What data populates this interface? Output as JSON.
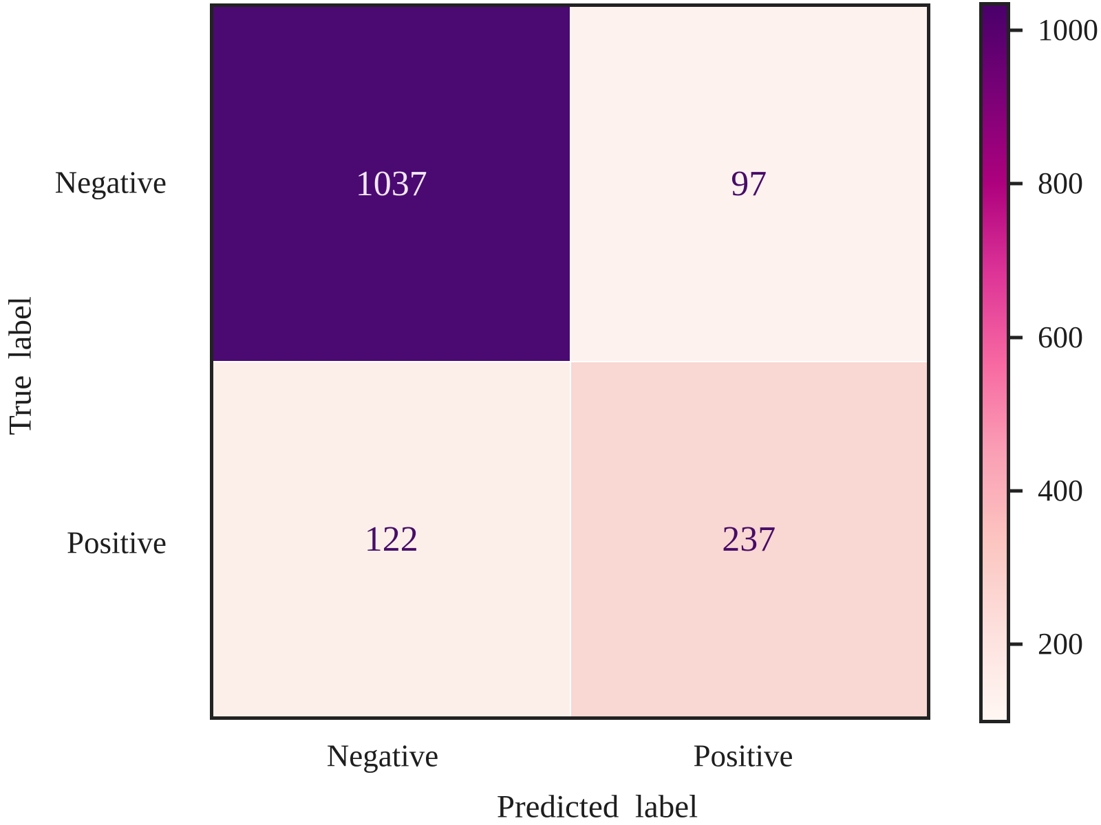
{
  "chart_data": {
    "type": "heatmap",
    "title": "",
    "xlabel": "Predicted label",
    "ylabel": "True label",
    "x_categories": [
      "Negative",
      "Positive"
    ],
    "y_categories": [
      "Negative",
      "Positive"
    ],
    "matrix": [
      [
        1037,
        97
      ],
      [
        122,
        237
      ]
    ],
    "grid": false,
    "legend": false,
    "colorbar": {
      "position": "right",
      "colormap": "RdPu",
      "vmin": 97,
      "vmax": 1037,
      "ticks": [
        200,
        400,
        600,
        800,
        1000
      ],
      "gradient_stops_bottom_to_top": [
        "#fff7f3",
        "#fde0dd",
        "#fcc5c0",
        "#fa9fb5",
        "#f768a1",
        "#dd3497",
        "#ae017e",
        "#7a0177",
        "#49006a"
      ]
    }
  },
  "labels": {
    "xlabel": "Predicted  label",
    "ylabel": "True  label",
    "x_ticks": [
      "Negative",
      "Positive"
    ],
    "y_ticks": [
      "Negative",
      "Positive"
    ]
  },
  "cells": [
    {
      "value": "1037",
      "bg": "#4a0a72",
      "fg": "#f2e7f2"
    },
    {
      "value": "97",
      "bg": "#fdf2ee",
      "fg": "#470c68"
    },
    {
      "value": "122",
      "bg": "#fcefe9",
      "fg": "#470c68"
    },
    {
      "value": "237",
      "bg": "#f9d7d2",
      "fg": "#470c68"
    }
  ],
  "colors": {
    "border": "#222222",
    "text": "#1e1e1e",
    "background": "#ffffff"
  }
}
